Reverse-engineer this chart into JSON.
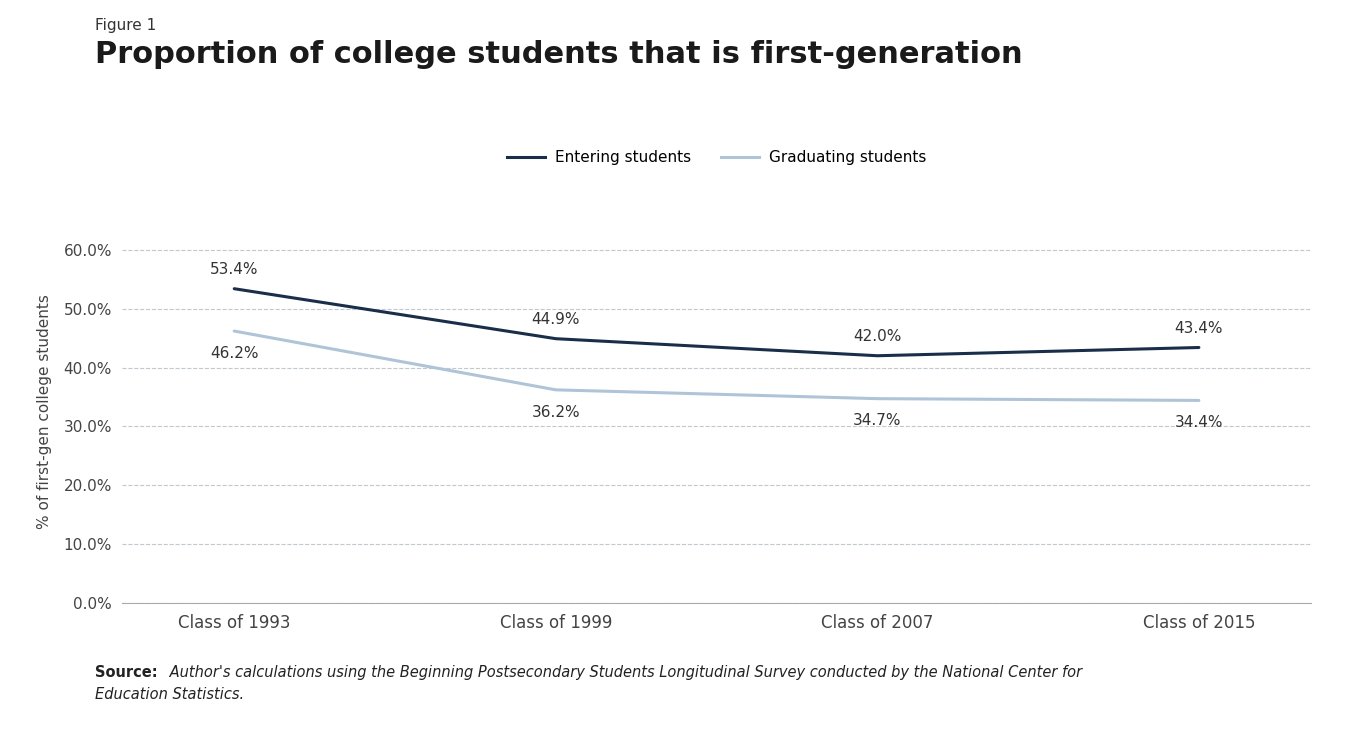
{
  "figure_label": "Figure 1",
  "title": "Proportion of college students that is first-generation",
  "categories": [
    "Class of 1993",
    "Class of 1999",
    "Class of 2007",
    "Class of 2015"
  ],
  "entering_values": [
    0.534,
    0.449,
    0.42,
    0.434
  ],
  "graduating_values": [
    0.462,
    0.362,
    0.347,
    0.344
  ],
  "entering_labels": [
    "53.4%",
    "44.9%",
    "42.0%",
    "43.4%"
  ],
  "graduating_labels": [
    "46.2%",
    "36.2%",
    "34.7%",
    "34.4%"
  ],
  "entering_color": "#1a2e4a",
  "graduating_color": "#b0c4d8",
  "ylabel": "% of first-gen college students",
  "ylim": [
    0.0,
    0.65
  ],
  "yticks": [
    0.0,
    0.1,
    0.2,
    0.3,
    0.4,
    0.5,
    0.6
  ],
  "legend_entering": "Entering students",
  "legend_graduating": "Graduating students",
  "source_bold": "Source:",
  "source_italic": " Author's calculations using the Beginning Postsecondary Students Longitudinal Survey conducted by the National Center for",
  "source_italic2": "Education Statistics.",
  "grid_color": "#c0c8d0",
  "line_width": 2.2
}
